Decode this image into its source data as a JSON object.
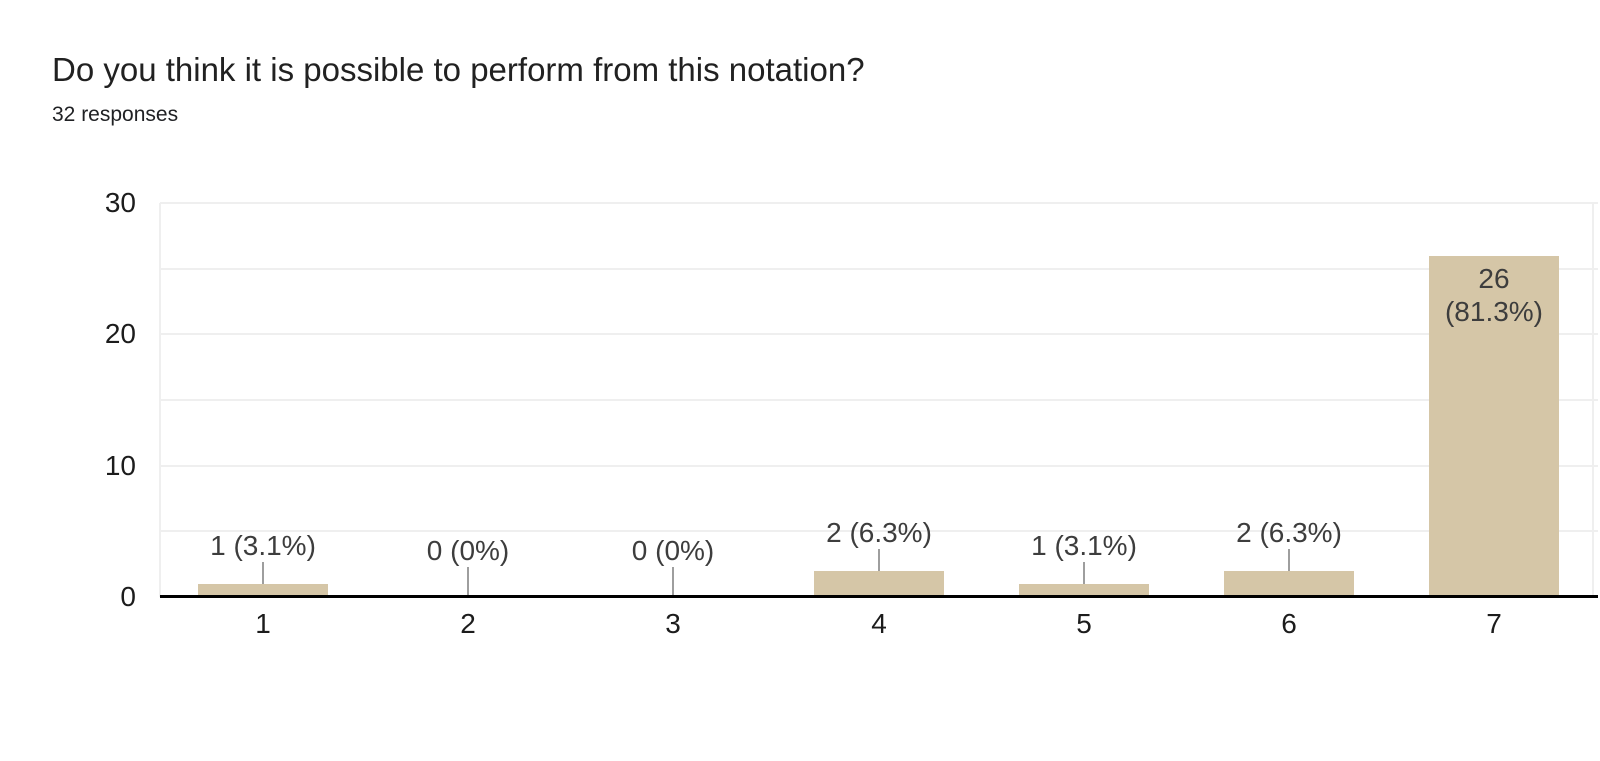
{
  "chart_data": {
    "type": "bar",
    "title": "Do you think it is possible to perform from this notation?",
    "subtitle": "32 responses",
    "categories": [
      "1",
      "2",
      "3",
      "4",
      "5",
      "6",
      "7"
    ],
    "values": [
      1,
      0,
      0,
      2,
      1,
      2,
      26
    ],
    "labels": [
      "1 (3.1%)",
      "0 (0%)",
      "0 (0%)",
      "2 (6.3%)",
      "1 (3.1%)",
      "2 (6.3%)",
      "26 (81.3%)"
    ],
    "xlabel": "",
    "ylabel": "",
    "ylim": [
      0,
      30
    ],
    "yticks": [
      0,
      10,
      20,
      30
    ],
    "gridline_step": 5,
    "legend": "none",
    "colors": {
      "bar": "#d5c6a7",
      "axis_line": "#000000",
      "gridline": "#efefef",
      "plot_border": "#efefef",
      "stem": "#9e9e9e",
      "axis_text": "#1c1c1c",
      "annotation_text": "#3d3d3d",
      "title_text": "#212121"
    }
  }
}
